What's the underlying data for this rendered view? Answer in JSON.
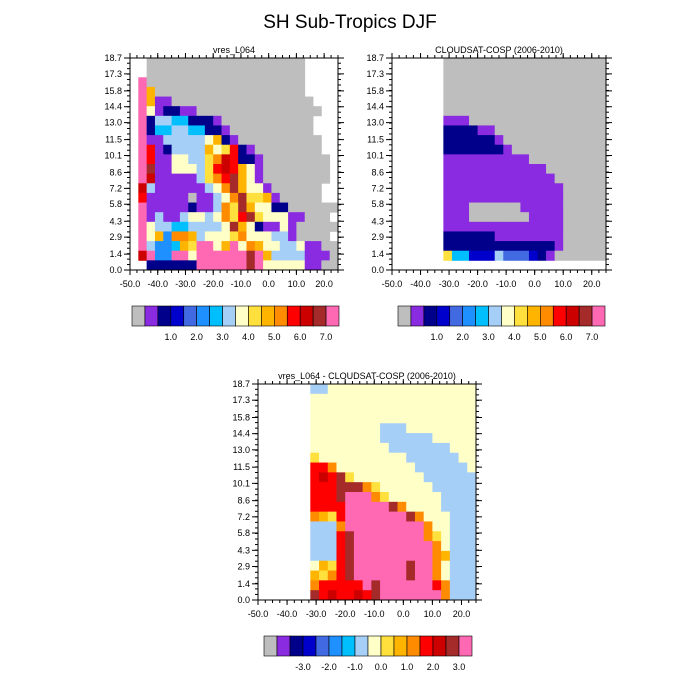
{
  "figure": {
    "title": "SH Sub-Tropics DJF"
  },
  "chart_data": [
    {
      "type": "heatmap",
      "title": "vres_L064",
      "xlim": [
        -50,
        25
      ],
      "ylim": [
        0,
        18.7
      ],
      "x_ticks": [
        "-50.0",
        "-40.0",
        "-30.0",
        "-20.0",
        "-10.0",
        "0.0",
        "10.0",
        "20.0"
      ],
      "y_ticks": [
        "0.0",
        "1.4",
        "2.9",
        "4.3",
        "5.8",
        "7.2",
        "8.6",
        "10.1",
        "11.5",
        "13.0",
        "14.4",
        "15.8",
        "17.3",
        "18.7"
      ],
      "colorbar": {
        "colors": [
          "#bebebe",
          "#8a2be2",
          "#00008b",
          "#0000cd",
          "#4169e1",
          "#1e90ff",
          "#00bfff",
          "#a6cff8",
          "#ffffc8",
          "#ffe03c",
          "#ffb400",
          "#ff8c00",
          "#ff0000",
          "#cd0000",
          "#a52a2a",
          "#ff69b4"
        ],
        "labels": [
          "1.0",
          "2.0",
          "3.0",
          "4.0",
          "5.0",
          "6.0",
          "7.0"
        ],
        "label_after_index": [
          2,
          4,
          6,
          8,
          10,
          12,
          14
        ]
      },
      "grid": {
        "rows": [
          "..0000000000000000000",
          "..0000000000000000000",
          ".F0000000000000000000",
          ".FA000000000000000000",
          ".FA1100000000000000000",
          ".F812211000000000000000",
          ".F27766222100000000000",
          ".F26677662210000000000",
          ".F11777778A210000000000",
          ".FC127777A89C2100000000",
          ".FC1188779BDC22100000000",
          ".FE1188879CDCA8100000000",
          ".FD1111179BCEA8100000000",
          ".D711111178BEA881000000",
          ".C1111101178BE99A100000",
          ".F111112117B9EA8822000000",
          ".F171178878B9CE988811000",
          ".F8776677778EA82118100000",
          ".F8A5BBA78889B8887710000",
          ".F7556A9FF8AF8BA8877811000",
          ".DF55FF8FFFFFFEFA777711100",
          "..222222FFFFFFEF888881100"
        ],
        "legend": ".=empty, 0=grey, 1-F=colorbar index"
      }
    },
    {
      "type": "heatmap",
      "title": "CLOUDSAT-COSP (2006-2010)",
      "xlim": [
        -50,
        25
      ],
      "ylim": [
        0,
        18.7
      ],
      "x_ticks": [
        "-50.0",
        "-40.0",
        "-30.0",
        "-20.0",
        "-10.0",
        "0.0",
        "10.0",
        "20.0"
      ],
      "y_ticks": [
        "0.0",
        "1.4",
        "2.9",
        "4.3",
        "5.8",
        "7.2",
        "8.6",
        "10.1",
        "11.5",
        "13.0",
        "14.4",
        "15.8",
        "17.3",
        "18.7"
      ],
      "colorbar": {
        "colors": [
          "#bebebe",
          "#8a2be2",
          "#00008b",
          "#0000cd",
          "#4169e1",
          "#1e90ff",
          "#00bfff",
          "#a6cff8",
          "#ffffc8",
          "#ffe03c",
          "#ffb400",
          "#ff8c00",
          "#ff0000",
          "#cd0000",
          "#a52a2a",
          "#ff69b4"
        ],
        "labels": [
          "1.0",
          "2.0",
          "3.0",
          "4.0",
          "5.0",
          "6.0",
          "7.0"
        ],
        "label_after_index": [
          2,
          4,
          6,
          8,
          10,
          12,
          14
        ]
      },
      "grid": {
        "rows": [
          "......0000000000000000000",
          "......0000000000000000000",
          "......0000000000000000000",
          "......0000000000000000000",
          "......0000000000000000000",
          "......0000000000000000000",
          "......1110000000000000000",
          "......2222110000000000000",
          "......2222221000000000000",
          "......2222222100000000000",
          "......1111111111000000000",
          "......1111111111110000000",
          "......1111111111111000000",
          "......1111111111111100000",
          "......1111111111111100000",
          "......1110000001111100000",
          "......1110000000111100000",
          "......1111111111111100000",
          "......2222221111111100000",
          "......2222222222222100000",
          "......9663337444321000000",
          "........................."
        ],
        "legend": ".=empty, 0=grey, 1-F=colorbar index"
      }
    },
    {
      "type": "heatmap",
      "title": "vres_L064 - CLOUDSAT-COSP (2006-2010)",
      "xlim": [
        -50,
        25
      ],
      "ylim": [
        0,
        18.7
      ],
      "x_ticks": [
        "-50.0",
        "-40.0",
        "-30.0",
        "-20.0",
        "-10.0",
        "0.0",
        "10.0",
        "20.0"
      ],
      "y_ticks": [
        "0.0",
        "1.4",
        "2.9",
        "4.3",
        "5.8",
        "7.2",
        "8.6",
        "10.1",
        "11.5",
        "13.0",
        "14.4",
        "15.8",
        "17.3",
        "18.7"
      ],
      "colorbar": {
        "colors": [
          "#bebebe",
          "#8a2be2",
          "#00008b",
          "#0000cd",
          "#4169e1",
          "#1e90ff",
          "#00bfff",
          "#a6cff8",
          "#ffffc8",
          "#ffe03c",
          "#ffb400",
          "#ff8c00",
          "#ff0000",
          "#cd0000",
          "#a52a2a",
          "#ff69b4"
        ],
        "labels": [
          "-3.0",
          "-2.0",
          "-1.0",
          "0.0",
          "1.0",
          "2.0",
          "3.0"
        ],
        "label_after_index": [
          2,
          4,
          6,
          8,
          10,
          12,
          14
        ]
      },
      "grid": {
        "rows": [
          "......7788888888888888888",
          "......8888888888888888888",
          "......8888888888888888888",
          "......8888888888888888888",
          "......88888888777888888888",
          "......88888888777777888888",
          "......88888888877777778888",
          "......98888888888777777888",
          "......CCB8888888887777778888",
          "......CDCE98888888877777788888",
          "......CCCEEEB9888888777777888",
          "......CCCEFFFB98888887777777788",
          "......CCCCFFFFFEB8888777777777",
          "......BA9CFFFFFFFEB888777777788",
          "......777BFFFFFFFFFB88777777788",
          "......777CEFFFFFFFFB98777777788",
          "......777CEFFFFFFFFFB8777777788",
          "......777CEFFFFFFFFFBA77777778",
          "......8A9CEFFFFFFEFFB8777777788",
          "......A9BCEFFFFFFEFFB8777777788",
          "......BCCCCCFEFFFFFFCB77777778",
          "......ECDCCDCEFFFFFFFB7777777"
        ],
        "legend": ".=empty, 0=grey, 1-F=colorbar index"
      }
    }
  ]
}
